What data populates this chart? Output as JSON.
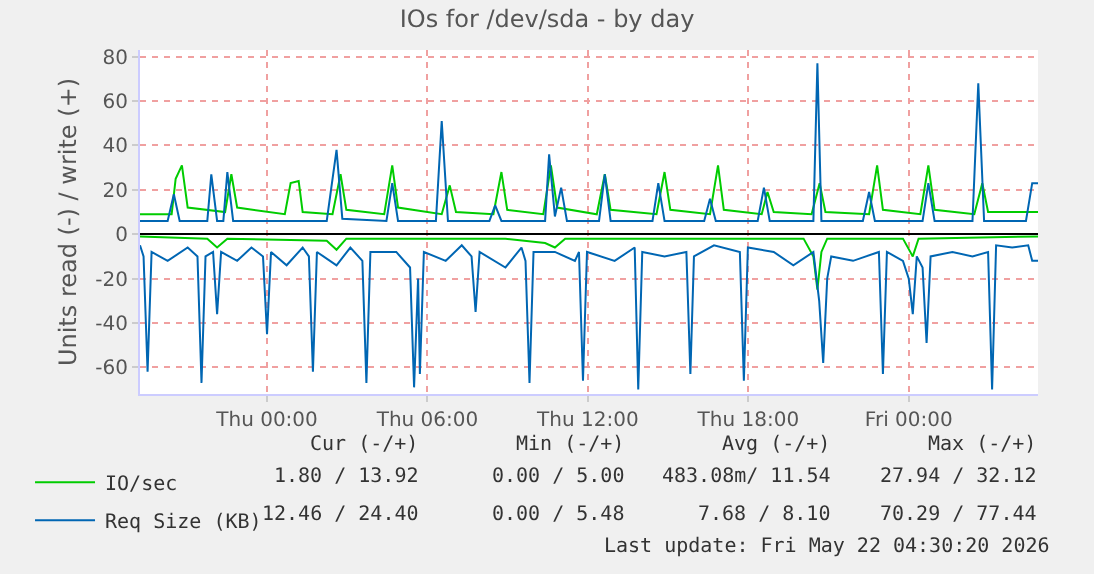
{
  "chart_data": {
    "type": "line",
    "title": "IOs for /dev/sda - by day",
    "ylabel": "Units read (-) / write (+)",
    "xlim": [
      "2026-05-20T19:15",
      "2026-05-22T04:50"
    ],
    "xticks": [
      {
        "value": "2026-05-21T00:00",
        "label": "Thu 00:00"
      },
      {
        "value": "2026-05-21T06:00",
        "label": "Thu 06:00"
      },
      {
        "value": "2026-05-21T12:00",
        "label": "Thu 12:00"
      },
      {
        "value": "2026-05-21T18:00",
        "label": "Thu 18:00"
      },
      {
        "value": "2026-05-22T00:00",
        "label": "Fri 00:00"
      }
    ],
    "ylim": [
      -72,
      83
    ],
    "yticks": [
      -60,
      -40,
      -20,
      0,
      20,
      40,
      60,
      80
    ],
    "grid": true,
    "legend": "bottom left",
    "marker": "none",
    "line_style": "solid",
    "series": [
      {
        "name": "IO/sec",
        "color": "#00cc00",
        "x": [
          "2026-05-20T19:15",
          "2026-05-20T20:26",
          "2026-05-20T20:35",
          "2026-05-20T20:49",
          "2026-05-20T21:02",
          "2026-05-20T22:26",
          "2026-05-20T22:40",
          "2026-05-20T22:53",
          "2026-05-21T00:40",
          "2026-05-21T00:53",
          "2026-05-21T01:11",
          "2026-05-21T01:20",
          "2026-05-21T02:27",
          "2026-05-21T02:45",
          "2026-05-21T02:58",
          "2026-05-21T04:23",
          "2026-05-21T04:41",
          "2026-05-21T04:54",
          "2026-05-21T06:32",
          "2026-05-21T06:50",
          "2026-05-21T07:04",
          "2026-05-21T08:28",
          "2026-05-21T08:46",
          "2026-05-21T08:59",
          "2026-05-21T10:20",
          "2026-05-21T10:37",
          "2026-05-21T10:51",
          "2026-05-21T12:20",
          "2026-05-21T12:38",
          "2026-05-21T12:51",
          "2026-05-21T14:34",
          "2026-05-21T14:52",
          "2026-05-21T15:05",
          "2026-05-21T16:34",
          "2026-05-21T16:52",
          "2026-05-21T17:05",
          "2026-05-21T18:30",
          "2026-05-21T18:43",
          "2026-05-21T18:57",
          "2026-05-21T20:22",
          "2026-05-21T20:40",
          "2026-05-21T20:53",
          "2026-05-21T22:31",
          "2026-05-21T22:49",
          "2026-05-21T23:02",
          "2026-05-22T00:26",
          "2026-05-22T00:44",
          "2026-05-22T00:58",
          "2026-05-22T02:27",
          "2026-05-22T02:45",
          "2026-05-22T02:58",
          "2026-05-22T04:50"
        ],
        "values": [
          9,
          9,
          25,
          31,
          12,
          10,
          27,
          12,
          9,
          23,
          24,
          10,
          9,
          27,
          11,
          9,
          31,
          12,
          9,
          22,
          10,
          9,
          28,
          11,
          9,
          31,
          12,
          9,
          27,
          11,
          9,
          28,
          11,
          9,
          31,
          11,
          9,
          19,
          10,
          9,
          23,
          10,
          9,
          31,
          11,
          9,
          31,
          11,
          9,
          23,
          10,
          10
        ]
      },
      {
        "color": "#00cc00",
        "x": [
          "2026-05-20T19:15",
          "2026-05-20T21:46",
          "2026-05-20T22:08",
          "2026-05-20T22:31",
          "2026-05-21T02:14",
          "2026-05-21T02:36",
          "2026-05-21T02:58",
          "2026-05-21T08:55",
          "2026-05-21T10:24",
          "2026-05-21T10:46",
          "2026-05-21T11:09",
          "2026-05-21T20:04",
          "2026-05-21T20:26",
          "2026-05-21T20:35",
          "2026-05-21T20:44",
          "2026-05-21T20:57",
          "2026-05-21T23:47",
          "2026-05-22T00:09",
          "2026-05-22T00:22",
          "2026-05-22T04:50"
        ],
        "values": [
          -1,
          -2,
          -6,
          -2,
          -3,
          -7,
          -2,
          -2,
          -4,
          -6,
          -2,
          -2,
          -10,
          -25,
          -8,
          -2,
          -2,
          -10,
          -2,
          -1
        ]
      },
      {
        "name": "Req Size (KB)",
        "color": "#0066b3",
        "x": [
          "2026-05-20T19:15",
          "2026-05-20T20:17",
          "2026-05-20T20:31",
          "2026-05-20T20:44",
          "2026-05-20T21:46",
          "2026-05-20T21:55",
          "2026-05-20T22:08",
          "2026-05-20T22:22",
          "2026-05-20T22:31",
          "2026-05-20T22:44",
          "2026-05-21T02:14",
          "2026-05-21T02:36",
          "2026-05-21T02:49",
          "2026-05-21T04:28",
          "2026-05-21T04:41",
          "2026-05-21T04:54",
          "2026-05-21T06:19",
          "2026-05-21T06:32",
          "2026-05-21T06:46",
          "2026-05-21T08:19",
          "2026-05-21T08:32",
          "2026-05-21T08:46",
          "2026-05-21T10:24",
          "2026-05-21T10:33",
          "2026-05-21T10:46",
          "2026-05-21T11:00",
          "2026-05-21T11:13",
          "2026-05-21T12:25",
          "2026-05-21T12:38",
          "2026-05-21T12:51",
          "2026-05-21T14:25",
          "2026-05-21T14:38",
          "2026-05-21T14:52",
          "2026-05-21T16:21",
          "2026-05-21T16:34",
          "2026-05-21T16:47",
          "2026-05-21T18:21",
          "2026-05-21T18:35",
          "2026-05-21T18:48",
          "2026-05-21T20:26",
          "2026-05-21T20:35",
          "2026-05-21T20:44",
          "2026-05-21T22:17",
          "2026-05-21T22:31",
          "2026-05-21T22:44",
          "2026-05-22T00:31",
          "2026-05-22T00:44",
          "2026-05-22T00:58",
          "2026-05-22T02:23",
          "2026-05-22T02:36",
          "2026-05-22T02:49",
          "2026-05-22T04:23",
          "2026-05-22T04:37",
          "2026-05-22T04:50"
        ],
        "values": [
          6,
          6,
          18,
          6,
          6,
          27,
          6,
          6,
          28,
          6,
          6,
          38,
          7,
          6,
          23,
          6,
          6,
          51,
          6,
          6,
          13,
          6,
          6,
          36,
          8,
          21,
          6,
          6,
          27,
          6,
          6,
          23,
          6,
          6,
          16,
          6,
          6,
          21,
          6,
          6,
          77,
          6,
          6,
          19,
          6,
          6,
          23,
          6,
          6,
          68,
          6,
          6,
          23,
          23
        ]
      },
      {
        "color": "#0066b3",
        "x": [
          "2026-05-20T19:15",
          "2026-05-20T19:23",
          "2026-05-20T19:32",
          "2026-05-20T19:41",
          "2026-05-20T20:17",
          "2026-05-20T21:02",
          "2026-05-20T21:24",
          "2026-05-20T21:33",
          "2026-05-20T21:42",
          "2026-05-20T21:59",
          "2026-05-20T22:08",
          "2026-05-20T22:17",
          "2026-05-20T22:53",
          "2026-05-20T23:25",
          "2026-05-20T23:51",
          "2026-05-21T00:00",
          "2026-05-21T00:09",
          "2026-05-21T00:44",
          "2026-05-21T01:20",
          "2026-05-21T01:34",
          "2026-05-21T01:43",
          "2026-05-21T01:52",
          "2026-05-21T02:36",
          "2026-05-21T03:07",
          "2026-05-21T03:34",
          "2026-05-21T03:43",
          "2026-05-21T03:52",
          "2026-05-21T04:50",
          "2026-05-21T05:21",
          "2026-05-21T05:30",
          "2026-05-21T05:39",
          "2026-05-21T05:43",
          "2026-05-21T05:52",
          "2026-05-21T06:41",
          "2026-05-21T07:17",
          "2026-05-21T07:39",
          "2026-05-21T07:48",
          "2026-05-21T07:57",
          "2026-05-21T08:55",
          "2026-05-21T09:31",
          "2026-05-21T09:40",
          "2026-05-21T09:49",
          "2026-05-21T09:58",
          "2026-05-21T10:46",
          "2026-05-21T11:31",
          "2026-05-21T11:40",
          "2026-05-21T11:49",
          "2026-05-21T11:58",
          "2026-05-21T13:00",
          "2026-05-21T13:45",
          "2026-05-21T13:53",
          "2026-05-21T14:02",
          "2026-05-21T14:52",
          "2026-05-21T15:41",
          "2026-05-21T15:50",
          "2026-05-21T15:58",
          "2026-05-21T16:43",
          "2026-05-21T17:41",
          "2026-05-21T17:50",
          "2026-05-21T17:59",
          "2026-05-21T18:57",
          "2026-05-21T19:41",
          "2026-05-21T20:26",
          "2026-05-21T20:39",
          "2026-05-21T20:48",
          "2026-05-21T20:57",
          "2026-05-21T21:06",
          "2026-05-21T21:55",
          "2026-05-21T22:53",
          "2026-05-21T23:02",
          "2026-05-21T23:11",
          "2026-05-21T23:47",
          "2026-05-22T00:00",
          "2026-05-22T00:09",
          "2026-05-22T00:18",
          "2026-05-22T00:31",
          "2026-05-22T00:40",
          "2026-05-22T00:49",
          "2026-05-22T01:38",
          "2026-05-22T02:23",
          "2026-05-22T02:58",
          "2026-05-22T03:07",
          "2026-05-22T03:16",
          "2026-05-22T03:52",
          "2026-05-22T04:28",
          "2026-05-22T04:37",
          "2026-05-22T04:50"
        ],
        "values": [
          -5,
          -10,
          -62,
          -8,
          -12,
          -6,
          -10,
          -67,
          -10,
          -8,
          -36,
          -8,
          -12,
          -6,
          -10,
          -45,
          -8,
          -14,
          -6,
          -10,
          -62,
          -8,
          -14,
          -6,
          -12,
          -67,
          -8,
          -8,
          -15,
          -69,
          -20,
          -63,
          -8,
          -12,
          -5,
          -10,
          -35,
          -8,
          -15,
          -6,
          -12,
          -67,
          -8,
          -8,
          -12,
          -8,
          -66,
          -8,
          -12,
          -6,
          -70,
          -8,
          -10,
          -8,
          -63,
          -10,
          -5,
          -8,
          -66,
          -6,
          -8,
          -14,
          -8,
          -30,
          -58,
          -20,
          -10,
          -12,
          -8,
          -63,
          -8,
          -12,
          -20,
          -36,
          -10,
          -15,
          -49,
          -10,
          -8,
          -10,
          -8,
          -70,
          -5,
          -6,
          -5,
          -12,
          -12
        ]
      }
    ],
    "annotations": [
      "Cur (-/+)",
      "Min (-/+)",
      "Avg (-/+)",
      "Max (-/+)",
      "1.80 / 13.92",
      "0.00 / 5.00",
      "483.08m/ 11.54",
      "27.94 / 32.12",
      "12.46 / 24.40",
      "0.00 / 5.48",
      "7.68 / 8.10",
      "70.29 / 77.44",
      "Last update: Fri May 22 04:30:20 2026"
    ]
  }
}
